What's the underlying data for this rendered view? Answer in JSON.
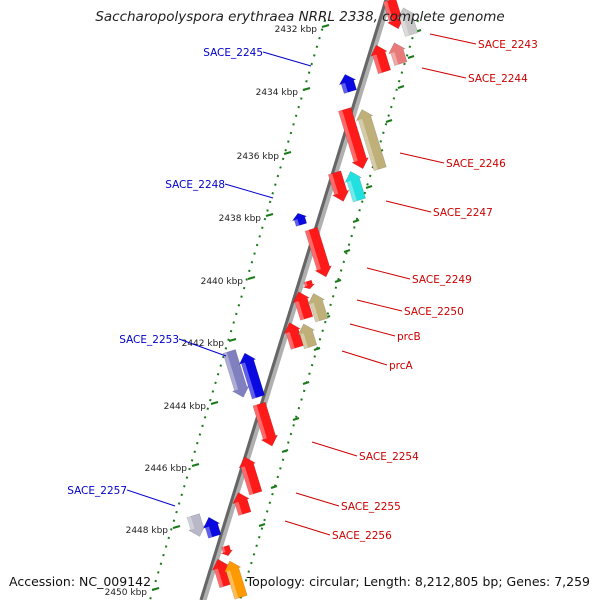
{
  "title": "Saccharopolyspora erythraea NRRL 2338, complete genome",
  "accession_label": "Accession: NC_009142",
  "stats_label": "Topology: circular; Length: 8,212,805 bp; Genes: 7,259",
  "colors": {
    "backbone": "#8a8a8a",
    "forward_label": "#cc0000",
    "reverse_label": "#0000cc",
    "tick": "#1a7a1a"
  },
  "ticks": [
    {
      "kbp": 2432,
      "label": "2432 kbp"
    },
    {
      "kbp": 2434,
      "label": "2434 kbp"
    },
    {
      "kbp": 2436,
      "label": "2436 kbp"
    },
    {
      "kbp": 2438,
      "label": "2438 kbp"
    },
    {
      "kbp": 2440,
      "label": "2440 kbp"
    },
    {
      "kbp": 2442,
      "label": "2442 kbp"
    },
    {
      "kbp": 2444,
      "label": "2444 kbp"
    },
    {
      "kbp": 2446,
      "label": "2446 kbp"
    },
    {
      "kbp": 2448,
      "label": "2448 kbp"
    },
    {
      "kbp": 2450,
      "label": "2450 kbp"
    }
  ],
  "gene_labels": [
    {
      "text": "SACE_2243",
      "strand": "forward"
    },
    {
      "text": "SACE_2244",
      "strand": "forward"
    },
    {
      "text": "SACE_2246",
      "strand": "forward"
    },
    {
      "text": "SACE_2247",
      "strand": "forward"
    },
    {
      "text": "SACE_2249",
      "strand": "forward"
    },
    {
      "text": "SACE_2250",
      "strand": "forward"
    },
    {
      "text": "prcB",
      "strand": "forward"
    },
    {
      "text": "prcA",
      "strand": "forward"
    },
    {
      "text": "SACE_2254",
      "strand": "forward"
    },
    {
      "text": "SACE_2255",
      "strand": "forward"
    },
    {
      "text": "SACE_2256",
      "strand": "forward"
    },
    {
      "text": "SACE_2245",
      "strand": "reverse"
    },
    {
      "text": "SACE_2248",
      "strand": "reverse"
    },
    {
      "text": "SACE_2253",
      "strand": "reverse"
    },
    {
      "text": "SACE_2257",
      "strand": "reverse"
    }
  ]
}
